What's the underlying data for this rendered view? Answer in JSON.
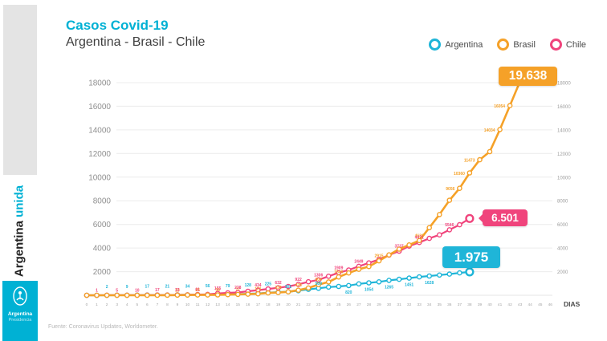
{
  "header": {
    "title": "Casos Covid-19",
    "subtitle": "Argentina - Brasil - Chile"
  },
  "legend": {
    "items": [
      {
        "label": "Argentina",
        "color": "#1fb5d8"
      },
      {
        "label": "Brasil",
        "color": "#f5a128"
      },
      {
        "label": "Chile",
        "color": "#f0447c"
      }
    ]
  },
  "sidebar": {
    "brand_dark": "Argentina",
    "brand_accent": "unida",
    "accent_color": "#00b1d4",
    "logo": {
      "line1": "Argentina",
      "line2": "Presidencia"
    }
  },
  "footer": {
    "source": "Fuente: Coronavirus Updates, Worldometer."
  },
  "chart_data": {
    "type": "line",
    "title": "Casos Covid-19",
    "subtitle": "Argentina - Brasil - Chile",
    "xlabel": "DIAS",
    "ylabel": "",
    "grid": true,
    "legend_position": "top-right",
    "ylim": [
      0,
      19638
    ],
    "y_ticks": [
      18000,
      16000,
      14000,
      12000,
      10000,
      8000,
      6000,
      4000,
      2000
    ],
    "x_ticks": [
      0,
      1,
      2,
      3,
      4,
      5,
      6,
      7,
      8,
      9,
      10,
      11,
      12,
      13,
      14,
      15,
      16,
      17,
      18,
      19,
      20,
      21,
      22,
      23,
      24,
      25,
      26,
      27,
      28,
      29,
      30,
      31,
      32,
      33,
      34,
      35,
      36,
      37,
      38,
      39,
      40,
      41,
      42,
      43,
      44,
      45,
      46
    ],
    "series": [
      {
        "name": "Argentina",
        "color": "#1fb5d8",
        "final_label": "1.975",
        "final_value": 1975,
        "values": [
          1,
          1,
          2,
          8,
          9,
          12,
          17,
          19,
          21,
          31,
          34,
          45,
          56,
          65,
          79,
          97,
          128,
          158,
          225,
          266,
          301,
          387,
          502,
          589,
          690,
          745,
          820,
          966,
          1054,
          1133,
          1265,
          1353,
          1451,
          1554,
          1628,
          1715,
          1795,
          1894,
          1975
        ],
        "labeled_points": [
          [
            2,
            2
          ],
          [
            4,
            9
          ],
          [
            6,
            17
          ],
          [
            8,
            21
          ],
          [
            10,
            34
          ],
          [
            12,
            56
          ],
          [
            14,
            79
          ],
          [
            16,
            128
          ],
          [
            18,
            225
          ],
          [
            20,
            301
          ],
          [
            23,
            589
          ],
          [
            26,
            820
          ],
          [
            28,
            1054
          ],
          [
            30,
            1265
          ],
          [
            32,
            1451
          ],
          [
            34,
            1628
          ]
        ]
      },
      {
        "name": "Brasil",
        "color": "#f5a128",
        "final_label": "19.638",
        "final_value": 19638,
        "values": [
          1,
          1,
          1,
          2,
          2,
          2,
          2,
          3,
          8,
          13,
          19,
          25,
          25,
          34,
          52,
          77,
          98,
          121,
          200,
          234,
          291,
          428,
          621,
          904,
          1128,
          1546,
          1891,
          2201,
          2433,
          2915,
          3417,
          3904,
          4256,
          4630,
          5717,
          6836,
          8044,
          9056,
          10360,
          11473,
          12161,
          14034,
          16054,
          18092,
          19638
        ],
        "labeled_points": [
          [
            9,
            13
          ],
          [
            11,
            25
          ],
          [
            13,
            34
          ],
          [
            15,
            77
          ],
          [
            17,
            121
          ],
          [
            19,
            234
          ],
          [
            21,
            428
          ],
          [
            23,
            904
          ],
          [
            25,
            1546
          ],
          [
            29,
            2915
          ],
          [
            33,
            4630
          ],
          [
            37,
            9056
          ],
          [
            38,
            10360
          ],
          [
            39,
            11473
          ],
          [
            41,
            14034
          ],
          [
            42,
            16054
          ]
        ]
      },
      {
        "name": "Chile",
        "color": "#f0447c",
        "final_label": "6.501",
        "final_value": 6501,
        "values": [
          1,
          1,
          4,
          5,
          7,
          10,
          13,
          17,
          23,
          33,
          43,
          61,
          74,
          155,
          201,
          238,
          342,
          434,
          537,
          632,
          746,
          922,
          1142,
          1306,
          1610,
          1909,
          2139,
          2449,
          2738,
          3031,
          3404,
          3737,
          4161,
          4471,
          4815,
          5116,
          5546,
          5972,
          6501
        ],
        "labeled_points": [
          [
            1,
            1
          ],
          [
            3,
            5
          ],
          [
            5,
            10
          ],
          [
            7,
            17
          ],
          [
            9,
            33
          ],
          [
            11,
            61
          ],
          [
            13,
            155
          ],
          [
            15,
            238
          ],
          [
            17,
            434
          ],
          [
            19,
            632
          ],
          [
            21,
            922
          ],
          [
            23,
            1306
          ],
          [
            25,
            1909
          ],
          [
            27,
            2449
          ],
          [
            31,
            3737
          ],
          [
            33,
            4471
          ],
          [
            36,
            5546
          ]
        ]
      }
    ]
  }
}
